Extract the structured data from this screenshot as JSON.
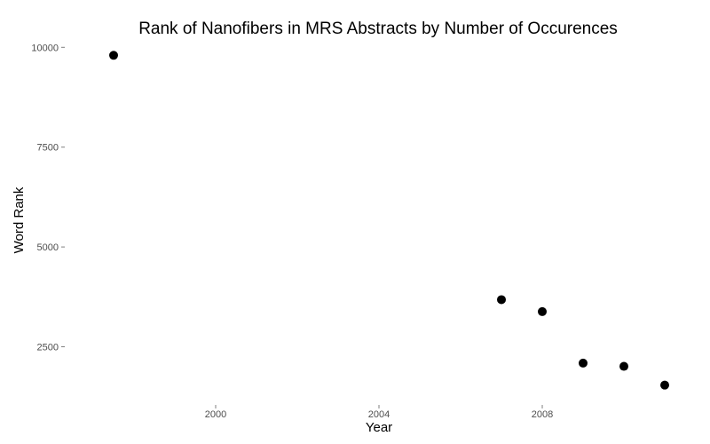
{
  "chart_data": {
    "type": "scatter",
    "title": "Rank of Nanofibers in MRS Abstracts by Number of Occurences",
    "xlabel": "Year",
    "ylabel": "Word Rank",
    "xlim": [
      1997,
      2011.5
    ],
    "ylim": [
      1200,
      10200
    ],
    "x_ticks": [
      2000,
      2004,
      2008
    ],
    "y_ticks": [
      2500,
      5000,
      7500,
      10000
    ],
    "grid": false,
    "series": [
      {
        "points": [
          {
            "x": 1997.5,
            "y": 9800
          },
          {
            "x": 2007,
            "y": 3680
          },
          {
            "x": 2008,
            "y": 3380
          },
          {
            "x": 2009,
            "y": 2090
          },
          {
            "x": 2010,
            "y": 2010
          },
          {
            "x": 2011,
            "y": 1540
          }
        ]
      }
    ]
  }
}
